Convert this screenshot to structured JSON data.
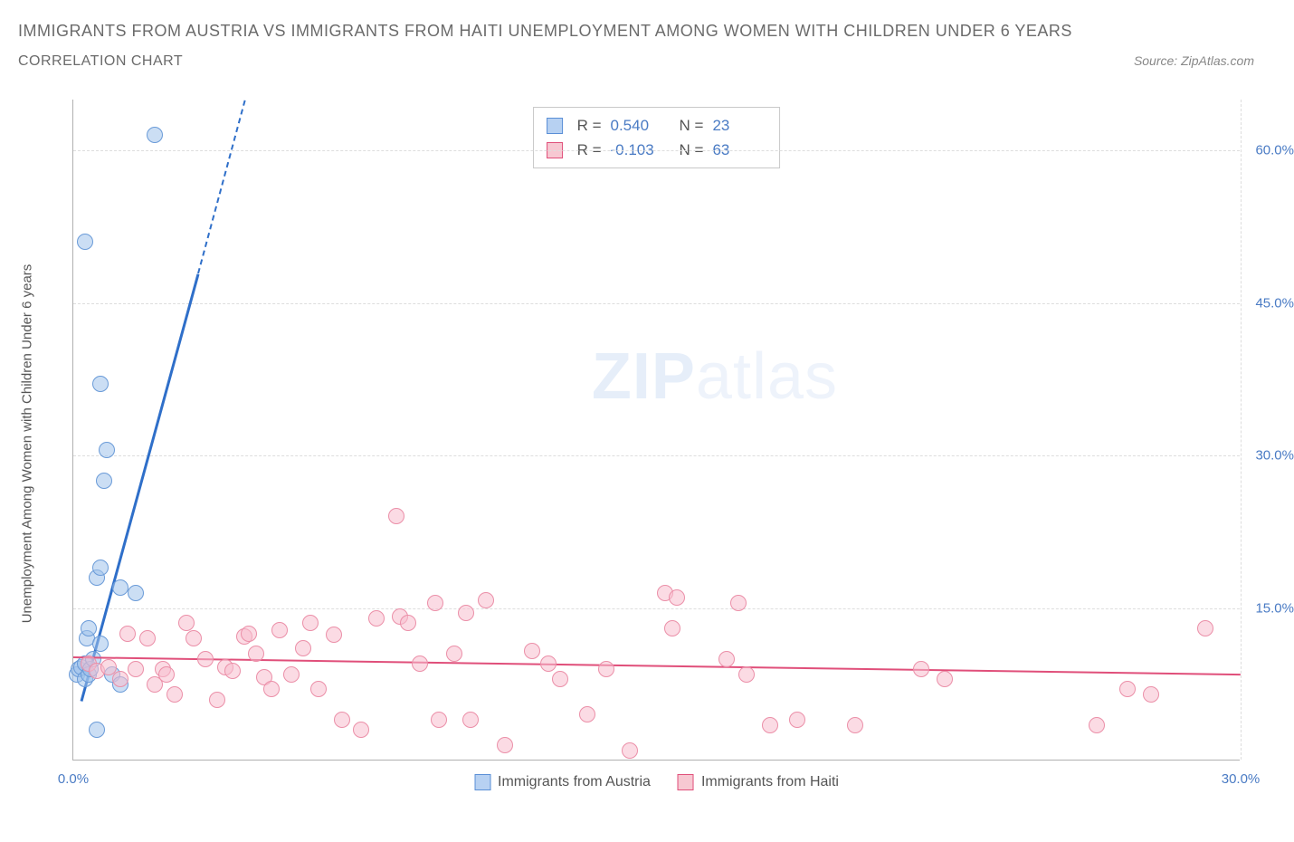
{
  "header": {
    "title": "IMMIGRANTS FROM AUSTRIA VS IMMIGRANTS FROM HAITI UNEMPLOYMENT AMONG WOMEN WITH CHILDREN UNDER 6 YEARS",
    "subtitle": "CORRELATION CHART",
    "source": "Source: ZipAtlas.com"
  },
  "chart": {
    "type": "scatter",
    "y_axis_label": "Unemployment Among Women with Children Under 6 years",
    "watermark_a": "ZIP",
    "watermark_b": "atlas",
    "background_color": "#ffffff",
    "grid_color": "#dddddd",
    "axis_color": "#b0b0b0",
    "tick_label_color": "#4a7bc4",
    "xlim": [
      0,
      30
    ],
    "ylim": [
      0,
      65
    ],
    "x_ticks": [
      0,
      30
    ],
    "x_tick_labels": [
      "0.0%",
      "30.0%"
    ],
    "y_ticks": [
      15,
      30,
      45,
      60
    ],
    "y_tick_labels": [
      "15.0%",
      "30.0%",
      "45.0%",
      "60.0%"
    ],
    "stats_legend": {
      "r_label": "R =",
      "n_label": "N =",
      "rows": [
        {
          "swatch_fill": "#b7d1f2",
          "swatch_border": "#5a8fd6",
          "r": "0.540",
          "n": "23"
        },
        {
          "swatch_fill": "#f7c8d2",
          "swatch_border": "#e04f7a",
          "r": "-0.103",
          "n": "63"
        }
      ]
    },
    "bottom_legend": {
      "items": [
        {
          "swatch_fill": "#b7d1f2",
          "swatch_border": "#5a8fd6",
          "label": "Immigrants from Austria"
        },
        {
          "swatch_fill": "#f7c8d2",
          "swatch_border": "#e04f7a",
          "label": "Immigrants from Haiti"
        }
      ]
    },
    "series": [
      {
        "name": "austria",
        "marker_fill": "rgba(160,195,235,0.55)",
        "marker_border": "#6a9bd8",
        "marker_radius": 9,
        "trend_color": "#2f6fc9",
        "trend_width": 3,
        "trend": {
          "x1": 0.2,
          "y1": 6,
          "x2": 3.2,
          "y2": 48
        },
        "trend_dash": {
          "x1": 3.2,
          "y1": 48,
          "x2": 4.4,
          "y2": 65
        },
        "points": [
          [
            0.1,
            8.5
          ],
          [
            0.15,
            9
          ],
          [
            0.2,
            9.2
          ],
          [
            0.3,
            9.5
          ],
          [
            0.3,
            8
          ],
          [
            0.35,
            12
          ],
          [
            0.4,
            13
          ],
          [
            0.4,
            8.5
          ],
          [
            0.45,
            9
          ],
          [
            0.5,
            10
          ],
          [
            0.7,
            11.5
          ],
          [
            0.6,
            18
          ],
          [
            0.7,
            19
          ],
          [
            0.8,
            27.5
          ],
          [
            0.85,
            30.5
          ],
          [
            0.6,
            3
          ],
          [
            0.7,
            37
          ],
          [
            2.1,
            61.5
          ],
          [
            0.3,
            51
          ],
          [
            1.6,
            16.5
          ],
          [
            1.2,
            17
          ],
          [
            1.0,
            8.5
          ],
          [
            1.2,
            7.5
          ]
        ]
      },
      {
        "name": "haiti",
        "marker_fill": "rgba(247,190,205,0.55)",
        "marker_border": "#eb8fa8",
        "marker_radius": 9,
        "trend_color": "#e04f7a",
        "trend_width": 2,
        "trend": {
          "x1": 0,
          "y1": 10.2,
          "x2": 30,
          "y2": 8.5
        },
        "points": [
          [
            0.4,
            9.5
          ],
          [
            0.6,
            8.8
          ],
          [
            0.9,
            9.2
          ],
          [
            1.2,
            8
          ],
          [
            1.4,
            12.5
          ],
          [
            1.6,
            9
          ],
          [
            1.9,
            12
          ],
          [
            2.1,
            7.5
          ],
          [
            2.3,
            9
          ],
          [
            2.4,
            8.5
          ],
          [
            2.6,
            6.5
          ],
          [
            2.9,
            13.5
          ],
          [
            3.1,
            12
          ],
          [
            3.4,
            10
          ],
          [
            3.7,
            6
          ],
          [
            3.9,
            9.2
          ],
          [
            4.1,
            8.8
          ],
          [
            4.4,
            12.2
          ],
          [
            4.7,
            10.5
          ],
          [
            4.9,
            8.2
          ],
          [
            5.3,
            12.8
          ],
          [
            5.6,
            8.5
          ],
          [
            5.9,
            11
          ],
          [
            6.3,
            7
          ],
          [
            6.7,
            12.4
          ],
          [
            6.9,
            4
          ],
          [
            7.4,
            3
          ],
          [
            7.8,
            14
          ],
          [
            8.3,
            24
          ],
          [
            8.4,
            14.2
          ],
          [
            8.6,
            13.5
          ],
          [
            8.9,
            9.5
          ],
          [
            9.3,
            15.5
          ],
          [
            9.4,
            4
          ],
          [
            9.8,
            10.5
          ],
          [
            10.1,
            14.5
          ],
          [
            10.2,
            4
          ],
          [
            10.6,
            15.8
          ],
          [
            11.1,
            1.5
          ],
          [
            11.8,
            10.8
          ],
          [
            12.2,
            9.5
          ],
          [
            12.5,
            8
          ],
          [
            13.2,
            4.5
          ],
          [
            13.7,
            9
          ],
          [
            14.3,
            1
          ],
          [
            15.2,
            16.5
          ],
          [
            15.4,
            13
          ],
          [
            15.5,
            16
          ],
          [
            16.8,
            10
          ],
          [
            17.1,
            15.5
          ],
          [
            17.3,
            8.5
          ],
          [
            17.9,
            3.5
          ],
          [
            18.6,
            4
          ],
          [
            20.1,
            3.5
          ],
          [
            21.8,
            9
          ],
          [
            22.4,
            8
          ],
          [
            26.3,
            3.5
          ],
          [
            27.1,
            7
          ],
          [
            27.7,
            6.5
          ],
          [
            29.1,
            13
          ],
          [
            4.5,
            12.5
          ],
          [
            5.1,
            7
          ],
          [
            6.1,
            13.5
          ]
        ]
      }
    ]
  }
}
